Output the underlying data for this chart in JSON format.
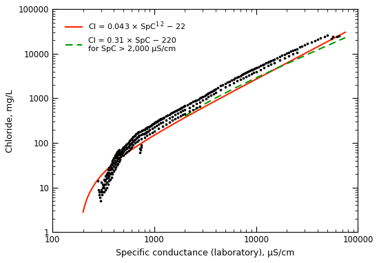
{
  "xlabel": "Specific conductance (laboratory), μS/cm",
  "ylabel": "Chloride, mg/L",
  "xlim": [
    100,
    100000
  ],
  "ylim": [
    1,
    100000
  ],
  "line1_color": "#ff2200",
  "line2_color": "#009900",
  "scatter_color": "#000000",
  "background_color": "#ffffff",
  "label1": "Cl = 0.043 × SpC$^{1.2}$ − 22",
  "label2": "Cl = 0.31 × SpC − 220\nfor SpC > 2,000 μS/cm",
  "scatter_points": [
    [
      280,
      14
    ],
    [
      285,
      9
    ],
    [
      290,
      8
    ],
    [
      290,
      7
    ],
    [
      292,
      6
    ],
    [
      295,
      5
    ],
    [
      300,
      13
    ],
    [
      300,
      9
    ],
    [
      300,
      8
    ],
    [
      305,
      7
    ],
    [
      310,
      12
    ],
    [
      310,
      10
    ],
    [
      310,
      8
    ],
    [
      315,
      11
    ],
    [
      320,
      15
    ],
    [
      320,
      12
    ],
    [
      320,
      10
    ],
    [
      320,
      8
    ],
    [
      325,
      14
    ],
    [
      330,
      18
    ],
    [
      330,
      15
    ],
    [
      330,
      12
    ],
    [
      330,
      9
    ],
    [
      335,
      19
    ],
    [
      340,
      20
    ],
    [
      340,
      16
    ],
    [
      340,
      13
    ],
    [
      340,
      10
    ],
    [
      345,
      22
    ],
    [
      350,
      25
    ],
    [
      350,
      20
    ],
    [
      350,
      16
    ],
    [
      350,
      12
    ],
    [
      355,
      18
    ],
    [
      360,
      28
    ],
    [
      360,
      22
    ],
    [
      360,
      18
    ],
    [
      360,
      14
    ],
    [
      365,
      26
    ],
    [
      370,
      30
    ],
    [
      370,
      25
    ],
    [
      370,
      20
    ],
    [
      370,
      15
    ],
    [
      375,
      32
    ],
    [
      380,
      35
    ],
    [
      380,
      28
    ],
    [
      380,
      22
    ],
    [
      380,
      17
    ],
    [
      385,
      38
    ],
    [
      390,
      40
    ],
    [
      390,
      32
    ],
    [
      390,
      26
    ],
    [
      390,
      20
    ],
    [
      395,
      42
    ],
    [
      400,
      45
    ],
    [
      400,
      36
    ],
    [
      400,
      30
    ],
    [
      400,
      23
    ],
    [
      405,
      48
    ],
    [
      410,
      50
    ],
    [
      410,
      40
    ],
    [
      410,
      33
    ],
    [
      410,
      26
    ],
    [
      415,
      52
    ],
    [
      420,
      55
    ],
    [
      420,
      45
    ],
    [
      420,
      37
    ],
    [
      420,
      29
    ],
    [
      425,
      58
    ],
    [
      430,
      60
    ],
    [
      430,
      50
    ],
    [
      430,
      40
    ],
    [
      430,
      32
    ],
    [
      435,
      62
    ],
    [
      440,
      65
    ],
    [
      440,
      54
    ],
    [
      440,
      44
    ],
    [
      440,
      35
    ],
    [
      445,
      68
    ],
    [
      450,
      70
    ],
    [
      450,
      58
    ],
    [
      450,
      47
    ],
    [
      450,
      38
    ],
    [
      455,
      60
    ],
    [
      460,
      55
    ],
    [
      460,
      43
    ],
    [
      465,
      58
    ],
    [
      470,
      62
    ],
    [
      470,
      49
    ],
    [
      475,
      65
    ],
    [
      480,
      68
    ],
    [
      480,
      54
    ],
    [
      485,
      72
    ],
    [
      490,
      75
    ],
    [
      490,
      60
    ],
    [
      495,
      78
    ],
    [
      500,
      80
    ],
    [
      500,
      65
    ],
    [
      500,
      52
    ],
    [
      510,
      85
    ],
    [
      515,
      70
    ],
    [
      520,
      88
    ],
    [
      520,
      72
    ],
    [
      520,
      58
    ],
    [
      530,
      92
    ],
    [
      535,
      76
    ],
    [
      540,
      95
    ],
    [
      540,
      78
    ],
    [
      540,
      63
    ],
    [
      550,
      100
    ],
    [
      555,
      82
    ],
    [
      560,
      105
    ],
    [
      560,
      85
    ],
    [
      560,
      68
    ],
    [
      570,
      110
    ],
    [
      575,
      90
    ],
    [
      580,
      115
    ],
    [
      580,
      94
    ],
    [
      580,
      75
    ],
    [
      590,
      120
    ],
    [
      595,
      98
    ],
    [
      600,
      125
    ],
    [
      600,
      102
    ],
    [
      600,
      82
    ],
    [
      610,
      130
    ],
    [
      615,
      106
    ],
    [
      620,
      136
    ],
    [
      620,
      110
    ],
    [
      620,
      89
    ],
    [
      635,
      143
    ],
    [
      640,
      116
    ],
    [
      650,
      150
    ],
    [
      650,
      122
    ],
    [
      650,
      99
    ],
    [
      660,
      157
    ],
    [
      665,
      128
    ],
    [
      680,
      165
    ],
    [
      680,
      135
    ],
    [
      680,
      109
    ],
    [
      690,
      170
    ],
    [
      695,
      139
    ],
    [
      700,
      175
    ],
    [
      700,
      143
    ],
    [
      700,
      116
    ],
    [
      710,
      180
    ],
    [
      715,
      147
    ],
    [
      720,
      60
    ],
    [
      725,
      75
    ],
    [
      730,
      70
    ],
    [
      740,
      90
    ],
    [
      745,
      80
    ],
    [
      750,
      185
    ],
    [
      750,
      152
    ],
    [
      750,
      123
    ],
    [
      760,
      190
    ],
    [
      770,
      157
    ],
    [
      780,
      195
    ],
    [
      790,
      162
    ],
    [
      800,
      200
    ],
    [
      800,
      164
    ],
    [
      800,
      133
    ],
    [
      820,
      210
    ],
    [
      830,
      172
    ],
    [
      840,
      215
    ],
    [
      850,
      220
    ],
    [
      850,
      180
    ],
    [
      850,
      146
    ],
    [
      860,
      225
    ],
    [
      870,
      185
    ],
    [
      880,
      230
    ],
    [
      900,
      240
    ],
    [
      900,
      197
    ],
    [
      900,
      160
    ],
    [
      920,
      248
    ],
    [
      940,
      255
    ],
    [
      950,
      260
    ],
    [
      950,
      213
    ],
    [
      950,
      173
    ],
    [
      960,
      265
    ],
    [
      980,
      272
    ],
    [
      1000,
      280
    ],
    [
      1000,
      230
    ],
    [
      1000,
      187
    ],
    [
      1020,
      288
    ],
    [
      1040,
      295
    ],
    [
      1050,
      300
    ],
    [
      1050,
      246
    ],
    [
      1060,
      305
    ],
    [
      1080,
      312
    ],
    [
      1100,
      320
    ],
    [
      1100,
      263
    ],
    [
      1100,
      213
    ],
    [
      1120,
      328
    ],
    [
      1140,
      335
    ],
    [
      1150,
      340
    ],
    [
      1150,
      280
    ],
    [
      1160,
      345
    ],
    [
      1180,
      352
    ],
    [
      1200,
      360
    ],
    [
      1200,
      296
    ],
    [
      1200,
      240
    ],
    [
      1220,
      368
    ],
    [
      1250,
      380
    ],
    [
      1300,
      400
    ],
    [
      1300,
      329
    ],
    [
      1300,
      267
    ],
    [
      1350,
      420
    ],
    [
      1400,
      440
    ],
    [
      1400,
      362
    ],
    [
      1400,
      294
    ],
    [
      1450,
      460
    ],
    [
      1500,
      480
    ],
    [
      1500,
      395
    ],
    [
      1500,
      321
    ],
    [
      1550,
      500
    ],
    [
      1600,
      520
    ],
    [
      1600,
      428
    ],
    [
      1600,
      347
    ],
    [
      1650,
      540
    ],
    [
      1700,
      560
    ],
    [
      1700,
      461
    ],
    [
      1700,
      374
    ],
    [
      1750,
      580
    ],
    [
      1800,
      600
    ],
    [
      1800,
      494
    ],
    [
      1800,
      401
    ],
    [
      1850,
      620
    ],
    [
      1900,
      640
    ],
    [
      1900,
      527
    ],
    [
      1900,
      428
    ],
    [
      1950,
      660
    ],
    [
      2000,
      680
    ],
    [
      2000,
      560
    ],
    [
      2000,
      454
    ],
    [
      2100,
      720
    ],
    [
      2200,
      760
    ],
    [
      2200,
      626
    ],
    [
      2200,
      508
    ],
    [
      2300,
      800
    ],
    [
      2400,
      840
    ],
    [
      2400,
      692
    ],
    [
      2400,
      562
    ],
    [
      2500,
      880
    ],
    [
      2600,
      920
    ],
    [
      2600,
      758
    ],
    [
      2600,
      615
    ],
    [
      2700,
      960
    ],
    [
      2800,
      1000
    ],
    [
      2800,
      824
    ],
    [
      2800,
      669
    ],
    [
      2900,
      1050
    ],
    [
      3000,
      1100
    ],
    [
      3000,
      906
    ],
    [
      3100,
      1150
    ],
    [
      3200,
      1200
    ],
    [
      3200,
      989
    ],
    [
      3300,
      1255
    ],
    [
      3400,
      1310
    ],
    [
      3400,
      1079
    ],
    [
      3500,
      1365
    ],
    [
      3600,
      1420
    ],
    [
      3600,
      1170
    ],
    [
      3700,
      1475
    ],
    [
      3800,
      1530
    ],
    [
      3800,
      1260
    ],
    [
      3900,
      1585
    ],
    [
      4000,
      1640
    ],
    [
      4000,
      1350
    ],
    [
      4200,
      1750
    ],
    [
      4500,
      1900
    ],
    [
      4500,
      1565
    ],
    [
      4700,
      2030
    ],
    [
      5000,
      2160
    ],
    [
      5000,
      1780
    ],
    [
      5200,
      2295
    ],
    [
      5500,
      2430
    ],
    [
      5500,
      2001
    ],
    [
      5700,
      2565
    ],
    [
      6000,
      2700
    ],
    [
      6000,
      2225
    ],
    [
      6200,
      2835
    ],
    [
      6500,
      2970
    ],
    [
      6500,
      2447
    ],
    [
      6700,
      3105
    ],
    [
      7000,
      3240
    ],
    [
      7000,
      2670
    ],
    [
      7200,
      3375
    ],
    [
      7500,
      3510
    ],
    [
      7500,
      2892
    ],
    [
      7700,
      3645
    ],
    [
      8000,
      3780
    ],
    [
      8000,
      3114
    ],
    [
      8200,
      3915
    ],
    [
      8500,
      4050
    ],
    [
      8500,
      3337
    ],
    [
      8700,
      4185
    ],
    [
      9000,
      4320
    ],
    [
      9000,
      3560
    ],
    [
      9200,
      4455
    ],
    [
      9500,
      4590
    ],
    [
      9500,
      3783
    ],
    [
      9700,
      4725
    ],
    [
      10000,
      4860
    ],
    [
      10000,
      4006
    ],
    [
      10500,
      5130
    ],
    [
      11000,
      5400
    ],
    [
      11000,
      4452
    ],
    [
      11500,
      5670
    ],
    [
      12000,
      5940
    ],
    [
      12000,
      4898
    ],
    [
      12500,
      6210
    ],
    [
      13000,
      6480
    ],
    [
      13000,
      5344
    ],
    [
      13500,
      6750
    ],
    [
      14000,
      7020
    ],
    [
      14000,
      5790
    ],
    [
      14500,
      7290
    ],
    [
      15000,
      7560
    ],
    [
      15000,
      6236
    ],
    [
      16000,
      8100
    ],
    [
      17000,
      8640
    ],
    [
      17000,
      7128
    ],
    [
      18000,
      9180
    ],
    [
      19000,
      9720
    ],
    [
      19000,
      8020
    ],
    [
      20000,
      10260
    ],
    [
      21000,
      10800
    ],
    [
      21000,
      8910
    ],
    [
      22000,
      11340
    ],
    [
      23000,
      11880
    ],
    [
      23000,
      9800
    ],
    [
      24000,
      12420
    ],
    [
      25000,
      12960
    ],
    [
      25000,
      10690
    ],
    [
      27000,
      14040
    ],
    [
      28000,
      14580
    ],
    [
      30000,
      15660
    ],
    [
      32000,
      16740
    ],
    [
      35000,
      18360
    ],
    [
      38000,
      19980
    ],
    [
      40000,
      20880
    ],
    [
      43000,
      22500
    ],
    [
      47000,
      24660
    ],
    [
      50000,
      26100
    ],
    [
      55000,
      22000
    ],
    [
      57000,
      24000
    ],
    [
      62000,
      24500
    ],
    [
      65000,
      25200
    ]
  ]
}
